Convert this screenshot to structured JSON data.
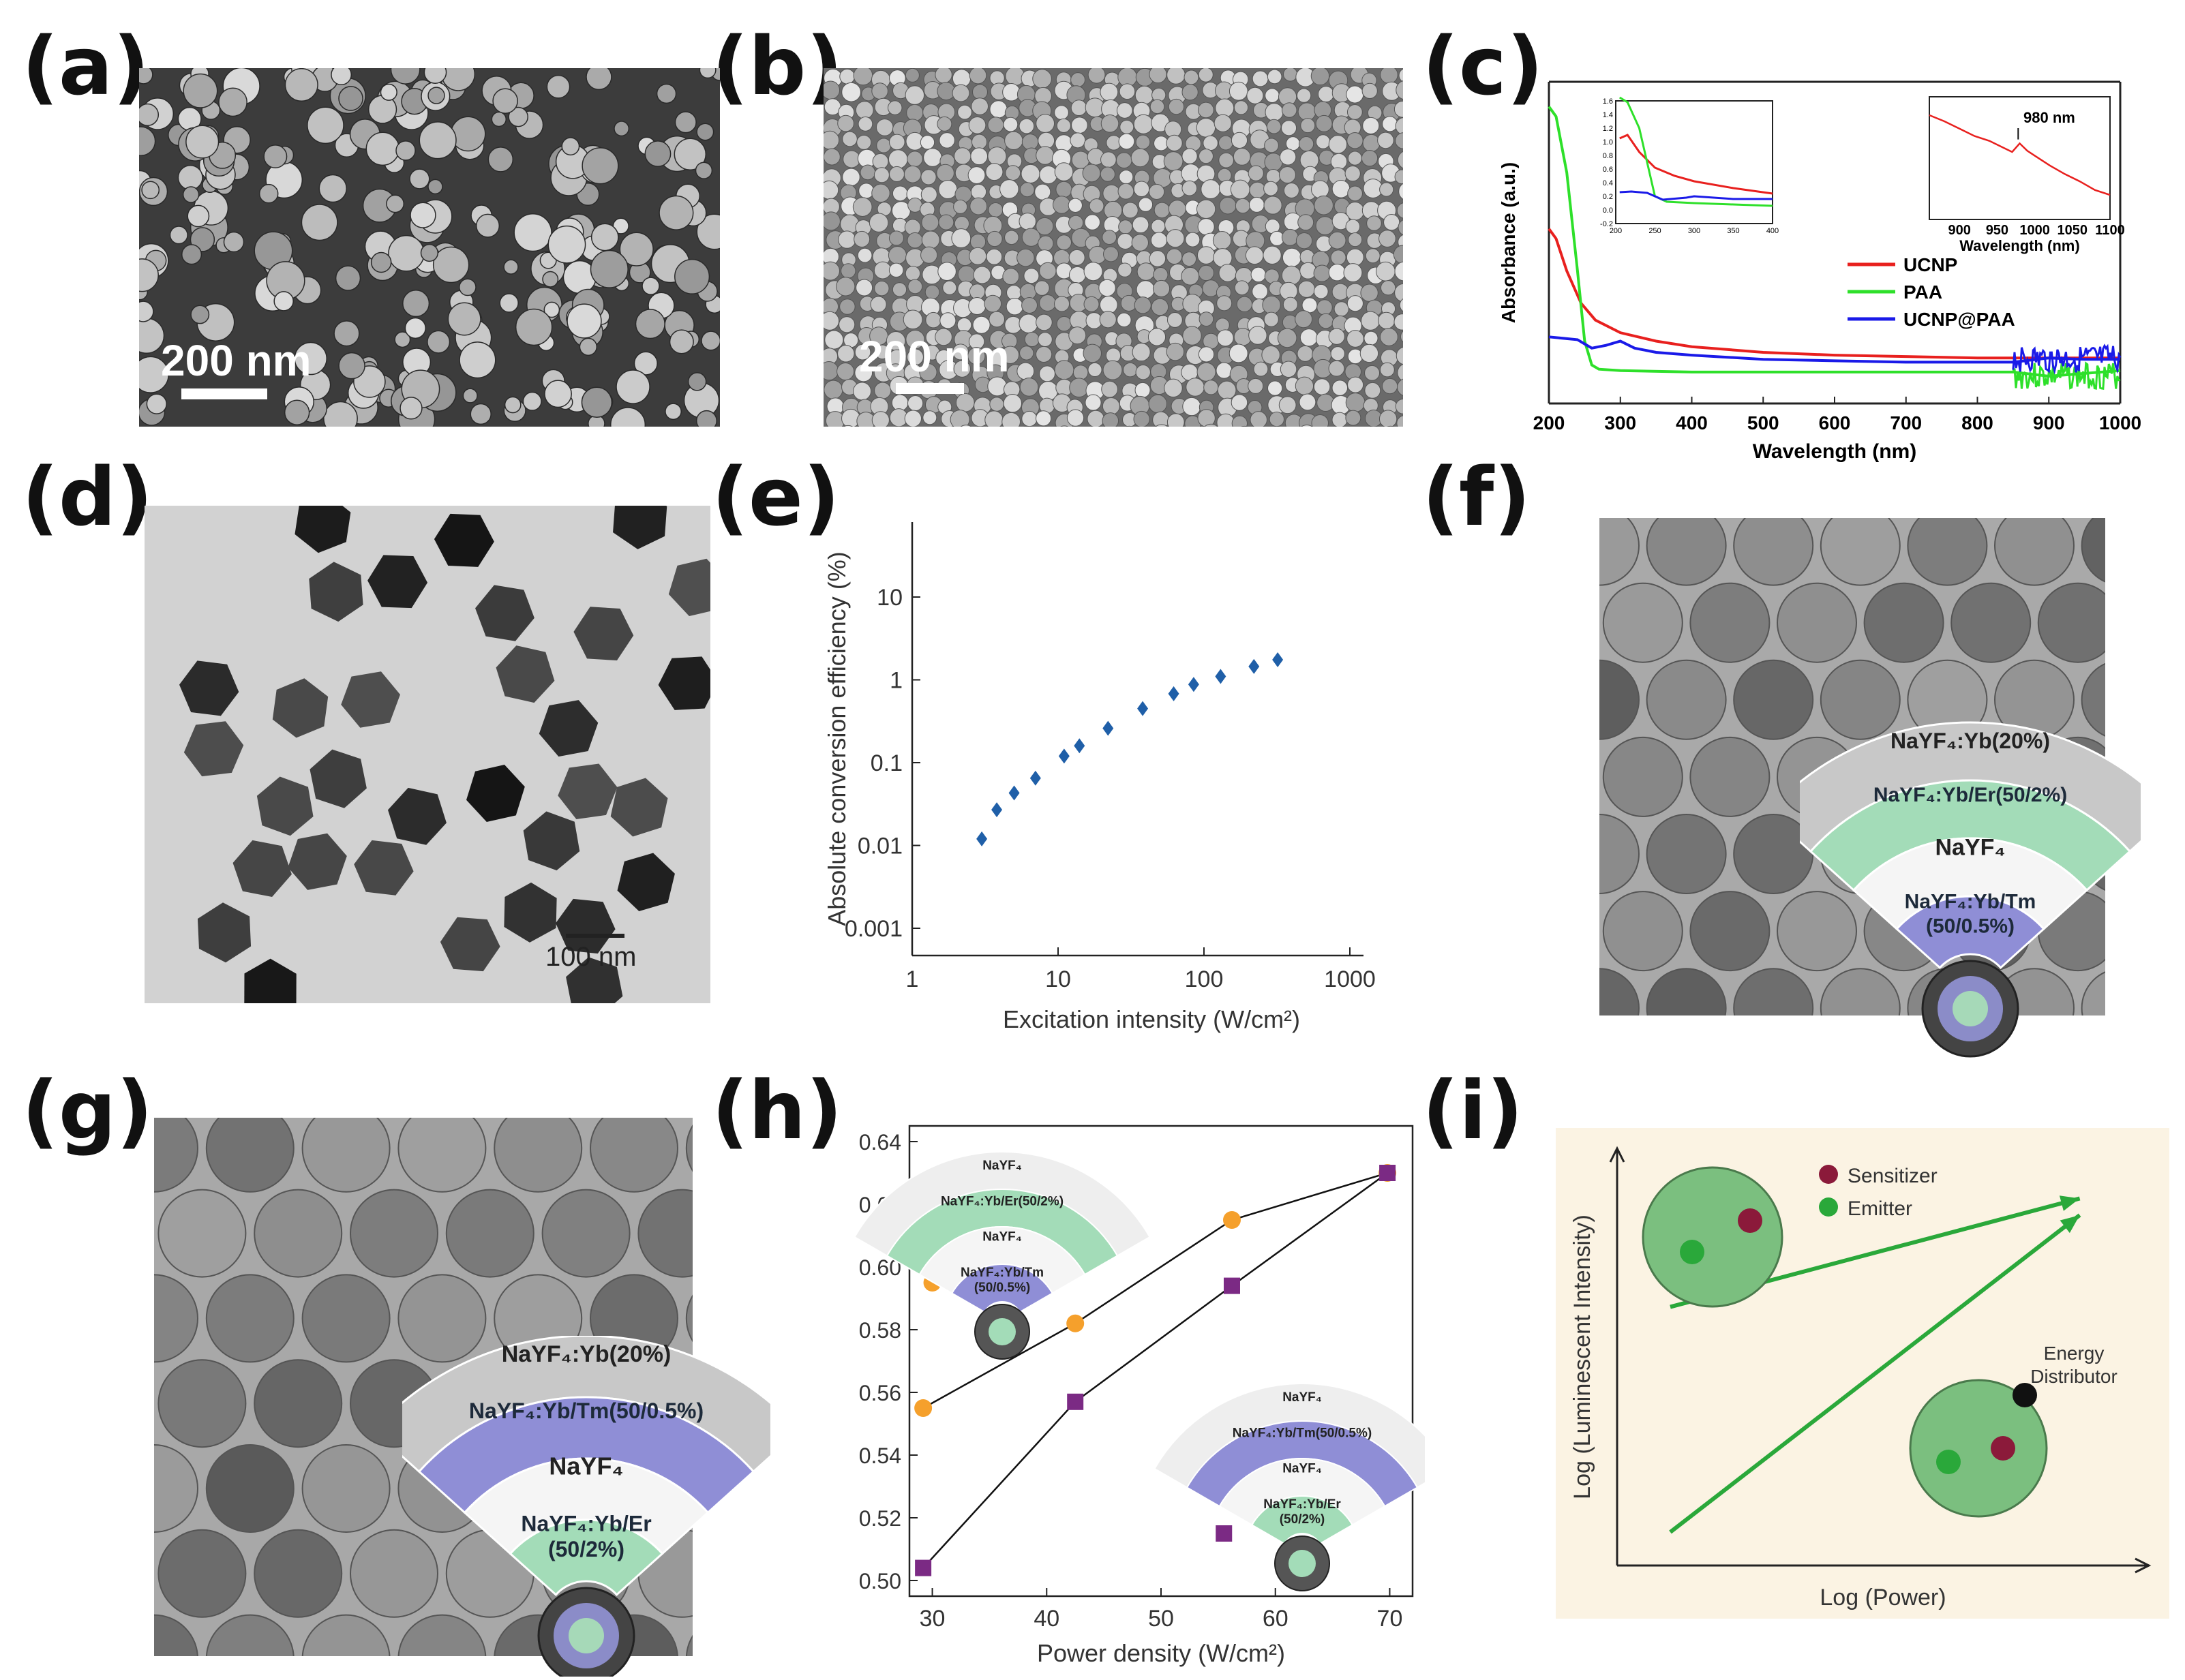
{
  "panels": {
    "a": {
      "label": "(a)",
      "scale_bar": "200 nm"
    },
    "b": {
      "label": "(b)",
      "scale_bar": "200 nm"
    },
    "c": {
      "label": "(c)"
    },
    "d": {
      "label": "(d)",
      "scale_bar": "100 nm"
    },
    "e": {
      "label": "(e)"
    },
    "f": {
      "label": "(f)",
      "layers": [
        "NaYF₄:Yb(20%)",
        "NaYF₄:Yb/Er(50/2%)",
        "NaYF₄",
        "NaYF₄:Yb/Tm",
        "(50/0.5%)"
      ]
    },
    "g": {
      "label": "(g)",
      "layers": [
        "NaYF₄:Yb(20%)",
        "NaYF₄:Yb/Tm(50/0.5%)",
        "NaYF₄",
        "NaYF₄:Yb/Er",
        "(50/2%)"
      ]
    },
    "h": {
      "label": "(h)",
      "inset1": [
        "NaYF₄",
        "NaYF₄:Yb/Er(50/2%)",
        "NaYF₄",
        "NaYF₄:Yb/Tm",
        "(50/0.5%)"
      ],
      "inset2": [
        "NaYF₄",
        "NaYF₄:Yb/Tm(50/0.5%)",
        "NaYF₄",
        "NaYF₄:Yb/Er",
        "(50/2%)"
      ]
    },
    "i": {
      "label": "(i)"
    }
  },
  "chart_data": [
    {
      "id": "c",
      "type": "line",
      "xlabel": "Wavelength (nm)",
      "ylabel": "Absorbance (a.u.)",
      "xlim": [
        200,
        1000
      ],
      "xticks": [
        "200",
        "300",
        "400",
        "500",
        "600",
        "700",
        "800",
        "900",
        "1000"
      ],
      "legend_position": "right",
      "series": [
        {
          "name": "UCNP",
          "color": "#e8201e",
          "x": [
            200,
            210,
            225,
            245,
            265,
            300,
            350,
            400,
            500,
            600,
            700,
            800,
            850,
            900,
            950,
            1000
          ],
          "y": [
            1.05,
            0.98,
            0.75,
            0.52,
            0.4,
            0.31,
            0.25,
            0.21,
            0.17,
            0.15,
            0.14,
            0.13,
            0.13,
            0.13,
            0.13,
            0.13
          ]
        },
        {
          "name": "PAA",
          "color": "#2ee02a",
          "x": [
            200,
            210,
            225,
            240,
            250,
            260,
            270,
            300,
            400,
            600,
            800,
            850,
            900,
            950,
            1000
          ],
          "y": [
            1.92,
            1.85,
            1.45,
            0.75,
            0.25,
            0.08,
            0.05,
            0.04,
            0.03,
            0.03,
            0.03,
            0.03,
            0.0,
            0.02,
            0.04
          ]
        },
        {
          "name": "UCNP@PAA",
          "color": "#1a1ae8",
          "x": [
            200,
            240,
            260,
            280,
            300,
            320,
            350,
            400,
            500,
            600,
            700,
            800,
            850,
            900,
            950,
            1000
          ],
          "y": [
            0.28,
            0.26,
            0.2,
            0.22,
            0.25,
            0.2,
            0.17,
            0.15,
            0.12,
            0.11,
            0.1,
            0.1,
            0.1,
            0.13,
            0.12,
            0.12
          ]
        }
      ],
      "inset_left": {
        "xlim": [
          200,
          400
        ],
        "ylim": [
          -0.2,
          1.6
        ],
        "xticks": [
          "200",
          "250",
          "300",
          "350",
          "400"
        ],
        "yticks": [
          "-0.2",
          "0.0",
          "0.2",
          "0.4",
          "0.6",
          "0.8",
          "1.0",
          "1.2",
          "1.4",
          "1.6"
        ],
        "series": [
          {
            "name": "UCNP",
            "color": "#e8201e",
            "x": [
              205,
              215,
              230,
              250,
              275,
              300,
              350,
              400
            ],
            "y": [
              1.05,
              1.1,
              0.85,
              0.62,
              0.5,
              0.42,
              0.32,
              0.24
            ]
          },
          {
            "name": "PAA",
            "color": "#2ee02a",
            "x": [
              205,
              215,
              230,
              240,
              250,
              265,
              300,
              350,
              400
            ],
            "y": [
              1.65,
              1.58,
              1.2,
              0.7,
              0.2,
              0.12,
              0.1,
              0.08,
              0.06
            ]
          },
          {
            "name": "UCNP@PAA",
            "color": "#1a1ae8",
            "x": [
              205,
              220,
              240,
              260,
              290,
              300,
              350,
              400
            ],
            "y": [
              0.26,
              0.27,
              0.25,
              0.15,
              0.18,
              0.2,
              0.16,
              0.16
            ]
          }
        ]
      },
      "inset_right": {
        "xlabel": "Wavelength (nm)",
        "xlim": [
          860,
          1100
        ],
        "xticks": [
          "900",
          "950",
          "1000",
          "1050",
          "1100"
        ],
        "annotation": "980 nm",
        "series": [
          {
            "name": "UCNP",
            "color": "#e8201e",
            "x": [
              860,
              880,
              900,
              920,
              940,
              960,
              970,
              980,
              990,
              1000,
              1020,
              1040,
              1060,
              1080,
              1100
            ],
            "y": [
              0.85,
              0.8,
              0.74,
              0.68,
              0.64,
              0.58,
              0.55,
              0.62,
              0.56,
              0.52,
              0.44,
              0.37,
              0.31,
              0.24,
              0.2
            ]
          }
        ]
      }
    },
    {
      "id": "e",
      "type": "scatter",
      "xlabel": "Excitation intensity (W/cm²)",
      "ylabel": "Absolute conversion efficiency (%)",
      "xscale": "log",
      "yscale": "log",
      "xlim": [
        1,
        1000
      ],
      "ylim": [
        0.001,
        40
      ],
      "xticks": [
        "1",
        "10",
        "100",
        "1000"
      ],
      "yticks": [
        "0.001",
        "0.01",
        "0.1",
        "1",
        "10"
      ],
      "color": "#1f5fa8",
      "x": [
        3,
        3.8,
        5,
        7,
        11,
        14,
        22,
        38,
        62,
        85,
        130,
        220,
        320
      ],
      "y": [
        0.012,
        0.027,
        0.043,
        0.065,
        0.12,
        0.16,
        0.26,
        0.45,
        0.68,
        0.88,
        1.1,
        1.45,
        1.75
      ]
    },
    {
      "id": "h",
      "type": "line",
      "xlabel": "Power density (W/cm²)",
      "xlim": [
        28,
        72
      ],
      "ylim": [
        0.495,
        0.645
      ],
      "xticks": [
        "30",
        "40",
        "50",
        "60",
        "70"
      ],
      "yticks": [
        "0.50",
        "0.52",
        "0.54",
        "0.56",
        "0.58",
        "0.60",
        "0.62",
        "0.64"
      ],
      "series": [
        {
          "marker": "circle",
          "color": "#f5a02c",
          "x": [
            29.2,
            42.5,
            56.2,
            69.8
          ],
          "y": [
            0.555,
            0.582,
            0.615,
            0.63
          ]
        },
        {
          "marker": "square",
          "color": "#7b2a84",
          "x": [
            29.2,
            42.5,
            56.2,
            69.8
          ],
          "y": [
            0.504,
            0.557,
            0.594,
            0.63
          ]
        }
      ],
      "legend_markers": [
        {
          "marker": "circle",
          "color": "#f5a02c",
          "x": 30,
          "y": 0.595
        },
        {
          "marker": "square",
          "color": "#7b2a84",
          "x": 55.5,
          "y": 0.515
        }
      ]
    },
    {
      "id": "i",
      "type": "line",
      "xlabel": "Log (Power)",
      "ylabel": "Log (Luminescent Intensity)",
      "legend": [
        "Sensitizer",
        "Emitter"
      ],
      "annotation": [
        "Energy",
        "Distributor"
      ],
      "colors": {
        "sensitizer": "#8b1a3a",
        "emitter": "#2aa83a",
        "distributor": "#111111",
        "arrow": "#2aa83a",
        "background": "#fbf3e3"
      },
      "series": [
        {
          "name": "upper arrow",
          "x": [
            0.1,
            0.87
          ],
          "y": [
            0.62,
            0.88
          ]
        },
        {
          "name": "lower arrow",
          "x": [
            0.1,
            0.87
          ],
          "y": [
            0.08,
            0.84
          ]
        }
      ]
    }
  ]
}
